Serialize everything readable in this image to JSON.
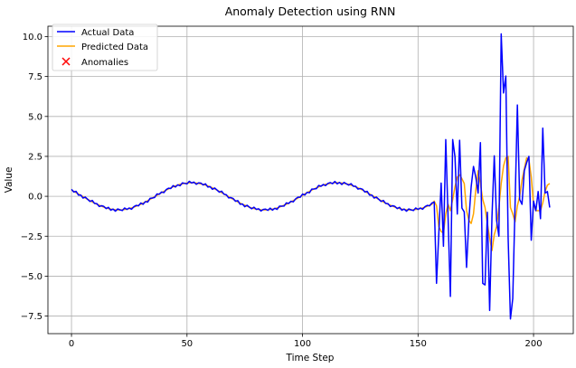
{
  "chart_data": {
    "type": "line",
    "title": "Anomaly Detection using RNN",
    "xlabel": "Time Step",
    "ylabel": "Value",
    "xlim": [
      -10.2,
      217.2
    ],
    "ylim": [
      -8.6,
      10.65
    ],
    "xticks": [
      0,
      50,
      100,
      150,
      200
    ],
    "xtick_labels": [
      "0",
      "50",
      "100",
      "150",
      "200"
    ],
    "yticks": [
      -7.5,
      -5.0,
      -2.5,
      0.0,
      2.5,
      5.0,
      7.5,
      10.0
    ],
    "ytick_labels": [
      "−7.5",
      "−5.0",
      "−2.5",
      "0.0",
      "2.5",
      "5.0",
      "7.5",
      "10.0"
    ],
    "grid": true,
    "legend_position": "top-left",
    "series": [
      {
        "name": "Actual Data",
        "color": "#0000ff",
        "x_start": 0,
        "values": [
          0.44,
          0.27,
          0.31,
          0.08,
          0.08,
          -0.11,
          -0.05,
          -0.19,
          -0.32,
          -0.26,
          -0.45,
          -0.46,
          -0.64,
          -0.59,
          -0.63,
          -0.77,
          -0.69,
          -0.87,
          -0.8,
          -0.93,
          -0.79,
          -0.85,
          -0.89,
          -0.73,
          -0.82,
          -0.73,
          -0.81,
          -0.65,
          -0.57,
          -0.6,
          -0.42,
          -0.5,
          -0.33,
          -0.36,
          -0.13,
          -0.11,
          -0.07,
          0.15,
          0.13,
          0.27,
          0.23,
          0.42,
          0.51,
          0.49,
          0.67,
          0.58,
          0.72,
          0.66,
          0.84,
          0.81,
          0.78,
          0.94,
          0.83,
          0.89,
          0.75,
          0.84,
          0.83,
          0.71,
          0.78,
          0.58,
          0.61,
          0.44,
          0.52,
          0.39,
          0.26,
          0.32,
          0.13,
          0.1,
          -0.1,
          -0.08,
          -0.14,
          -0.31,
          -0.27,
          -0.5,
          -0.48,
          -0.65,
          -0.56,
          -0.68,
          -0.78,
          -0.68,
          -0.82,
          -0.78,
          -0.92,
          -0.82,
          -0.8,
          -0.88,
          -0.74,
          -0.87,
          -0.75,
          -0.82,
          -0.62,
          -0.62,
          -0.61,
          -0.41,
          -0.45,
          -0.31,
          -0.35,
          -0.16,
          -0.06,
          -0.06,
          0.14,
          0.08,
          0.25,
          0.22,
          0.45,
          0.46,
          0.48,
          0.68,
          0.63,
          0.74,
          0.67,
          0.81,
          0.86,
          0.79,
          0.93,
          0.78,
          0.87,
          0.74,
          0.87,
          0.78,
          0.7,
          0.79,
          0.63,
          0.63,
          0.45,
          0.49,
          0.44,
          0.27,
          0.31,
          0.08,
          0.08,
          -0.11,
          -0.05,
          -0.19,
          -0.32,
          -0.26,
          -0.45,
          -0.46,
          -0.64,
          -0.59,
          -0.63,
          -0.77,
          -0.69,
          -0.87,
          -0.8,
          -0.93,
          -0.79,
          -0.85,
          -0.89,
          -0.73,
          -0.82,
          -0.73,
          -0.81,
          -0.65,
          -0.57,
          -0.6,
          -0.42,
          -0.36,
          -5.45,
          -2.3,
          0.83,
          -3.13,
          3.55,
          -1.3,
          -6.27,
          3.55,
          2.47,
          -1.11,
          3.51,
          -0.74,
          -0.98,
          -4.45,
          -1.5,
          0.6,
          1.87,
          1.2,
          0.2,
          3.36,
          -5.45,
          -5.55,
          -1.0,
          -7.15,
          -1.3,
          2.53,
          -1.5,
          -2.5,
          10.17,
          6.47,
          7.53,
          -2.6,
          -7.68,
          -6.4,
          -0.5,
          5.72,
          -0.2,
          -0.5,
          1.6,
          2.1,
          2.5,
          -2.75,
          -0.3,
          -0.9,
          0.3,
          -1.4,
          4.27,
          0.2,
          0.3,
          -0.7
        ]
      },
      {
        "name": "Predicted Data",
        "color": "#ffa500",
        "x_start": 0,
        "values": [
          0.39,
          0.31,
          0.23,
          0.15,
          0.06,
          -0.02,
          -0.11,
          -0.19,
          -0.27,
          -0.35,
          -0.43,
          -0.5,
          -0.56,
          -0.62,
          -0.68,
          -0.73,
          -0.77,
          -0.8,
          -0.82,
          -0.84,
          -0.85,
          -0.85,
          -0.84,
          -0.82,
          -0.8,
          -0.77,
          -0.73,
          -0.68,
          -0.62,
          -0.56,
          -0.5,
          -0.43,
          -0.35,
          -0.27,
          -0.19,
          -0.11,
          -0.02,
          0.06,
          0.15,
          0.23,
          0.31,
          0.39,
          0.46,
          0.53,
          0.59,
          0.65,
          0.7,
          0.75,
          0.78,
          0.81,
          0.83,
          0.85,
          0.85,
          0.85,
          0.83,
          0.81,
          0.78,
          0.75,
          0.7,
          0.65,
          0.59,
          0.53,
          0.46,
          0.39,
          0.31,
          0.23,
          0.15,
          0.06,
          -0.02,
          -0.11,
          -0.19,
          -0.27,
          -0.35,
          -0.43,
          -0.5,
          -0.56,
          -0.62,
          -0.68,
          -0.73,
          -0.77,
          -0.8,
          -0.82,
          -0.84,
          -0.85,
          -0.85,
          -0.84,
          -0.82,
          -0.8,
          -0.77,
          -0.73,
          -0.68,
          -0.62,
          -0.56,
          -0.5,
          -0.43,
          -0.35,
          -0.27,
          -0.19,
          -0.11,
          -0.02,
          0.06,
          0.15,
          0.23,
          0.31,
          0.39,
          0.46,
          0.53,
          0.59,
          0.65,
          0.7,
          0.75,
          0.78,
          0.81,
          0.83,
          0.85,
          0.85,
          0.85,
          0.83,
          0.81,
          0.78,
          0.75,
          0.7,
          0.65,
          0.59,
          0.53,
          0.46,
          0.39,
          0.31,
          0.23,
          0.15,
          0.06,
          -0.02,
          -0.11,
          -0.19,
          -0.27,
          -0.35,
          -0.43,
          -0.5,
          -0.56,
          -0.62,
          -0.68,
          -0.73,
          -0.77,
          -0.8,
          -0.82,
          -0.84,
          -0.85,
          -0.85,
          -0.84,
          -0.82,
          -0.8,
          -0.77,
          -0.73,
          -0.68,
          -0.62,
          -0.56,
          -0.5,
          -0.3,
          -0.6,
          -1.9,
          -2.2,
          -2.3,
          -1.1,
          -0.5,
          -0.9,
          -0.2,
          0.6,
          1.2,
          1.35,
          1.1,
          0.8,
          -0.9,
          -1.5,
          -1.7,
          -1.1,
          0.4,
          1.6,
          0.8,
          -0.2,
          -0.7,
          -1.7,
          -2.6,
          -3.4,
          -2.4,
          -1.9,
          -0.7,
          0.8,
          1.9,
          2.4,
          2.5,
          -0.7,
          -1.1,
          -1.6,
          -0.6,
          0.0,
          1.0,
          1.7,
          2.4,
          2.3,
          1.2,
          -0.5,
          -0.9,
          -0.9,
          -0.9,
          -0.4,
          0.3,
          0.7,
          0.8
        ]
      },
      {
        "name": "Anomalies",
        "color": "#ff0000",
        "marker": "x",
        "x": [],
        "values": []
      }
    ]
  }
}
